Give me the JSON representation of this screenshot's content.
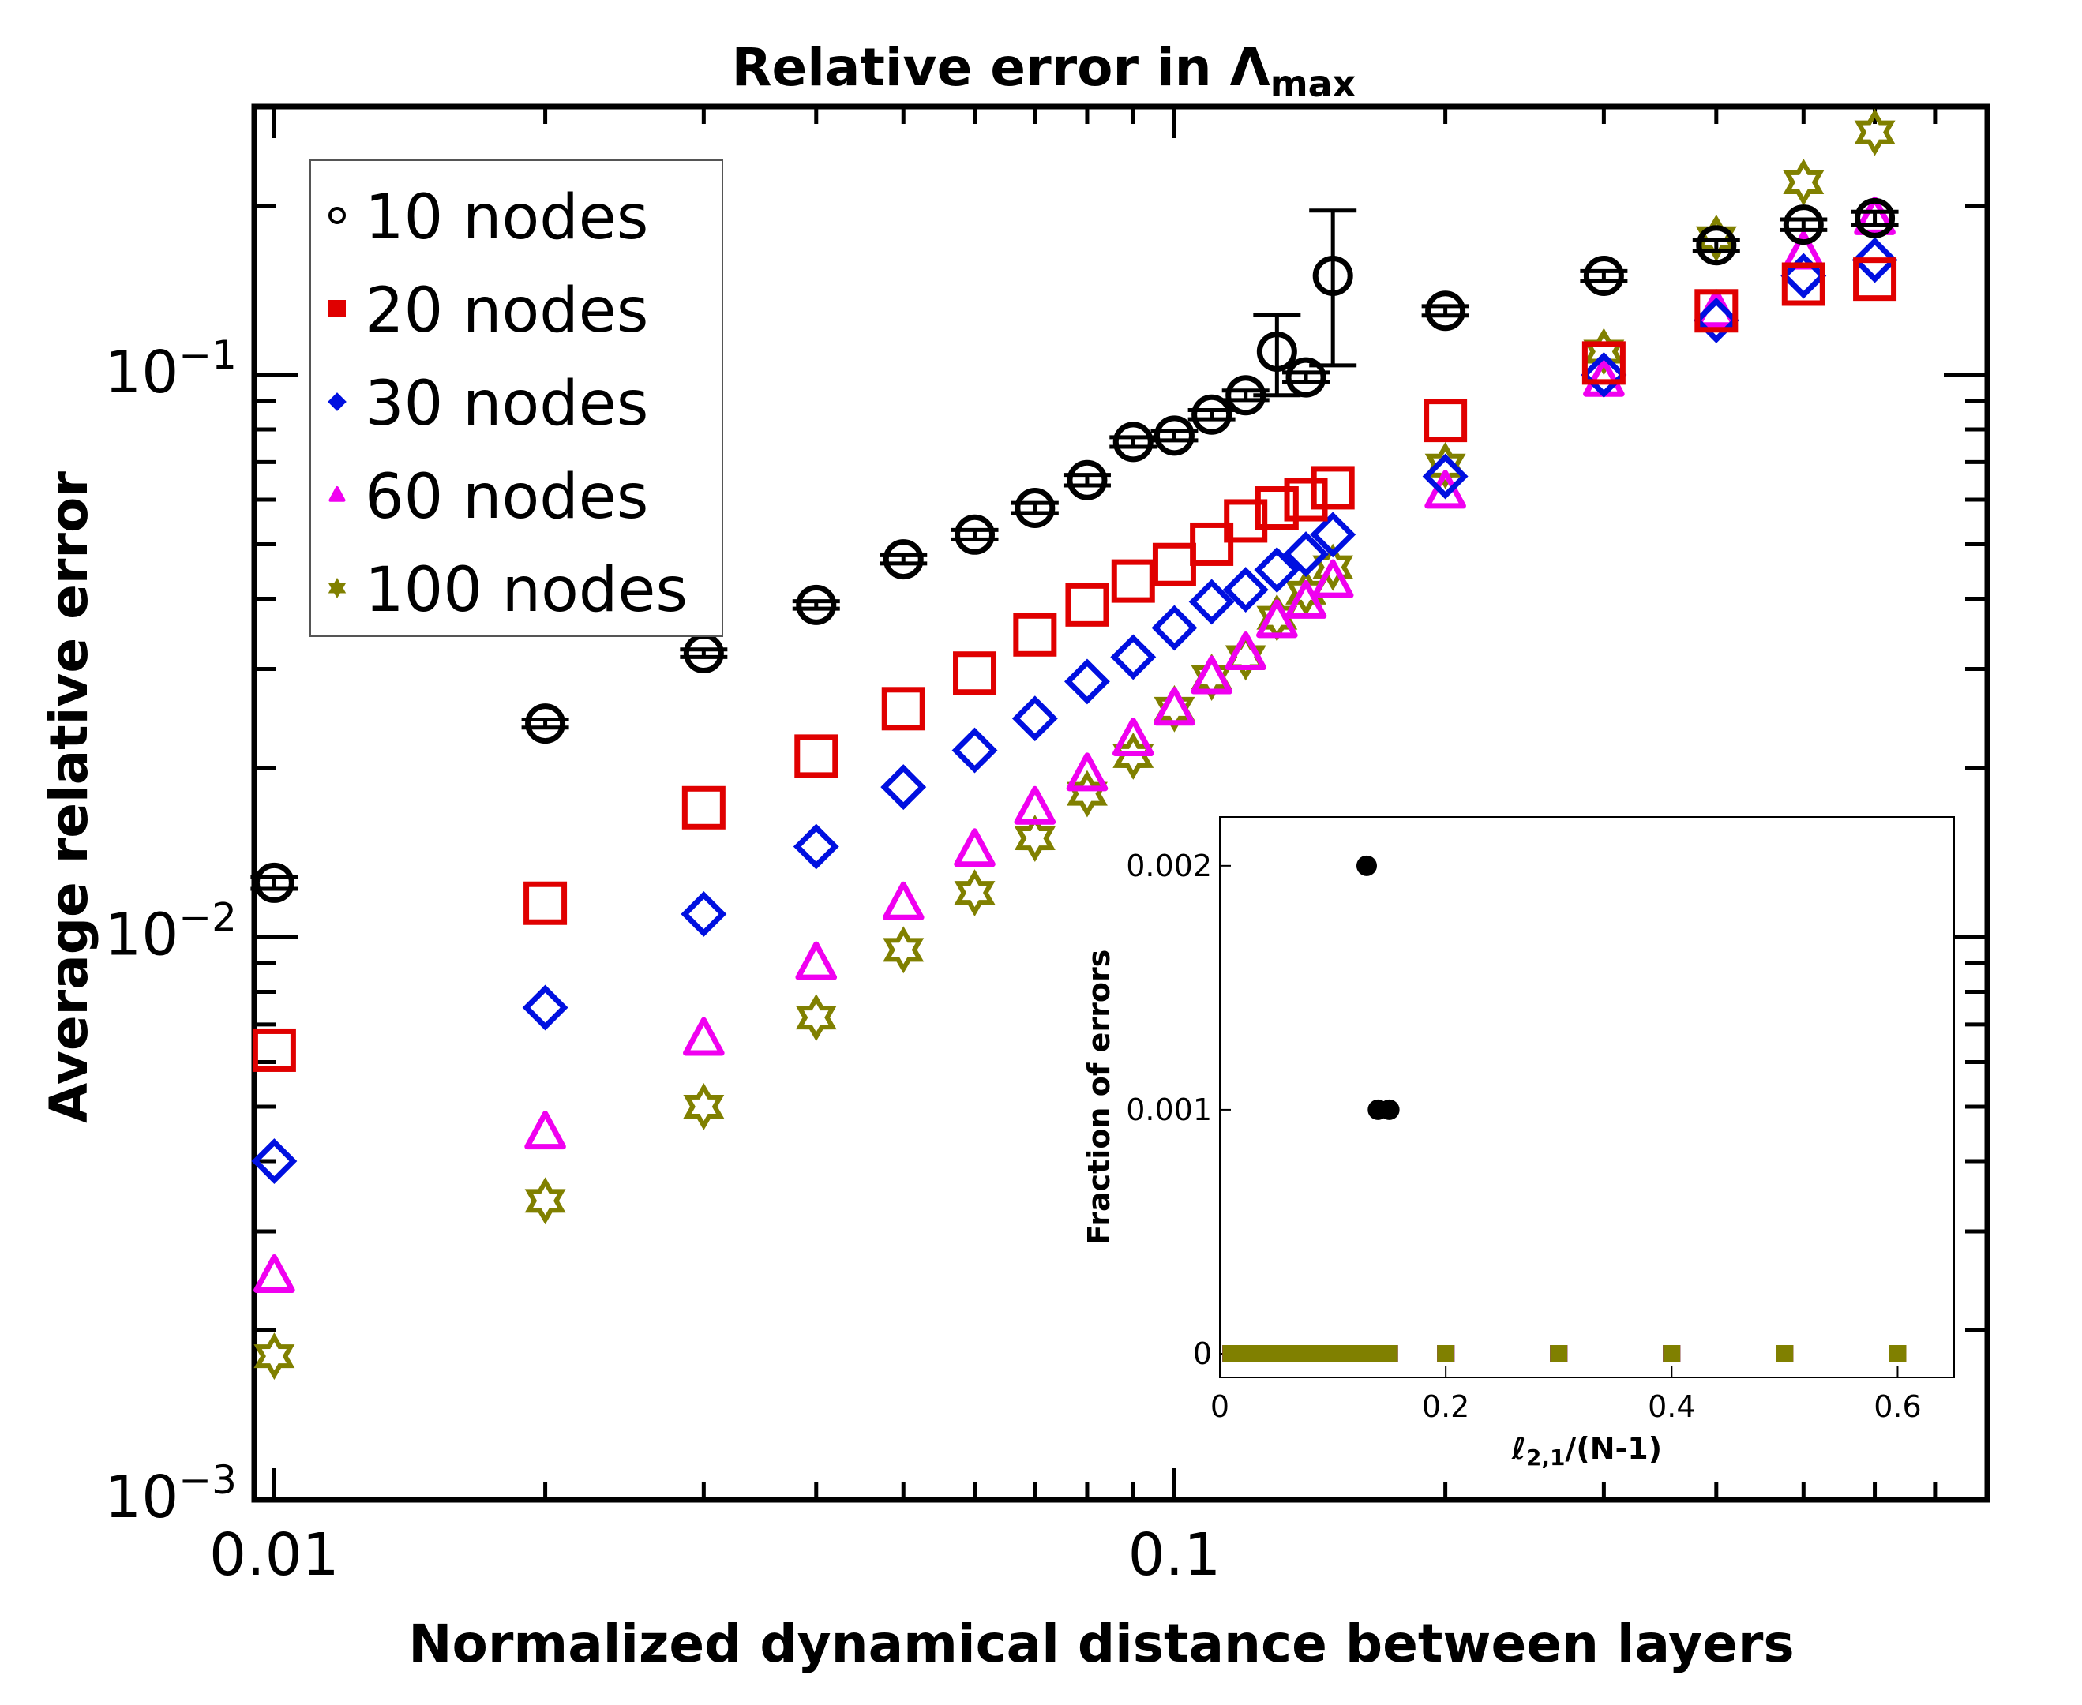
{
  "chart_data": [
    {
      "type": "scatter",
      "title": "Relative error in Λ",
      "title_subscript": "max",
      "xlabel": "Normalized dynamical distance between layers",
      "ylabel": "Average relative error",
      "xscale": "log",
      "yscale": "log",
      "xlim": [
        0.0095,
        0.8
      ],
      "ylim": [
        0.001,
        0.3
      ],
      "x_ticks": [
        {
          "value": 0.01,
          "label": "0.01"
        },
        {
          "value": 0.1,
          "label": "0.1"
        }
      ],
      "y_ticks": [
        {
          "value": 0.001,
          "label": "10",
          "exp": "−3"
        },
        {
          "value": 0.01,
          "label": "10",
          "exp": "−2"
        },
        {
          "value": 0.1,
          "label": "10",
          "exp": "−1"
        }
      ],
      "legend_position": "top-left",
      "series": [
        {
          "name": "10 nodes",
          "marker": "circle",
          "color": "#000000",
          "x": [
            0.01,
            0.02,
            0.03,
            0.04,
            0.05,
            0.06,
            0.07,
            0.08,
            0.09,
            0.1,
            0.11,
            0.12,
            0.13,
            0.14,
            0.15,
            0.2,
            0.3,
            0.4,
            0.5,
            0.6
          ],
          "y": [
            0.0125,
            0.024,
            0.032,
            0.039,
            0.047,
            0.052,
            0.058,
            0.065,
            0.076,
            0.078,
            0.085,
            0.092,
            0.11,
            0.099,
            0.15,
            0.13,
            0.15,
            0.17,
            0.185,
            0.19
          ],
          "error": [
            0.0003,
            0.0004,
            0.0005,
            0.0006,
            0.0008,
            0.001,
            0.0012,
            0.0014,
            0.0015,
            0.0015,
            0.0016,
            0.0018,
            0.018,
            0.002,
            0.046,
            0.0025,
            0.003,
            0.004,
            0.004,
            0.005
          ]
        },
        {
          "name": "20 nodes",
          "marker": "square",
          "color": "#e00000",
          "x": [
            0.01,
            0.02,
            0.03,
            0.04,
            0.05,
            0.06,
            0.07,
            0.08,
            0.09,
            0.1,
            0.11,
            0.12,
            0.13,
            0.14,
            0.15,
            0.2,
            0.3,
            0.4,
            0.5,
            0.6
          ],
          "y": [
            0.0063,
            0.0115,
            0.017,
            0.021,
            0.0255,
            0.0295,
            0.0345,
            0.039,
            0.043,
            0.046,
            0.05,
            0.055,
            0.058,
            0.06,
            0.063,
            0.083,
            0.105,
            0.13,
            0.145,
            0.148
          ]
        },
        {
          "name": "30 nodes",
          "marker": "diamond",
          "color": "#0010e0",
          "x": [
            0.01,
            0.02,
            0.03,
            0.04,
            0.05,
            0.06,
            0.07,
            0.08,
            0.09,
            0.1,
            0.11,
            0.12,
            0.13,
            0.14,
            0.15,
            0.2,
            0.3,
            0.4,
            0.5,
            0.6
          ],
          "y": [
            0.004,
            0.0075,
            0.011,
            0.0145,
            0.0185,
            0.0215,
            0.0245,
            0.0285,
            0.0315,
            0.0355,
            0.0395,
            0.0415,
            0.045,
            0.048,
            0.052,
            0.066,
            0.1,
            0.125,
            0.15,
            0.16
          ]
        },
        {
          "name": "60 nodes",
          "marker": "triangle",
          "color": "#f000f0",
          "x": [
            0.01,
            0.02,
            0.03,
            0.04,
            0.05,
            0.06,
            0.07,
            0.08,
            0.09,
            0.1,
            0.11,
            0.12,
            0.13,
            0.14,
            0.15,
            0.2,
            0.3,
            0.4,
            0.5,
            0.6
          ],
          "y": [
            0.0025,
            0.0045,
            0.0066,
            0.009,
            0.0115,
            0.0143,
            0.017,
            0.0195,
            0.0225,
            0.0255,
            0.029,
            0.032,
            0.0365,
            0.0395,
            0.043,
            0.062,
            0.098,
            0.13,
            0.165,
            0.19
          ]
        },
        {
          "name": "100 nodes",
          "marker": "star",
          "color": "#808000",
          "x": [
            0.01,
            0.02,
            0.03,
            0.04,
            0.05,
            0.06,
            0.07,
            0.08,
            0.09,
            0.1,
            0.11,
            0.12,
            0.13,
            0.14,
            0.15,
            0.2,
            0.3,
            0.4,
            0.5,
            0.6
          ],
          "y": [
            0.0018,
            0.0034,
            0.005,
            0.0072,
            0.0095,
            0.012,
            0.015,
            0.018,
            0.021,
            0.0255,
            0.029,
            0.0315,
            0.037,
            0.041,
            0.0455,
            0.069,
            0.11,
            0.175,
            0.22,
            0.27
          ]
        }
      ]
    },
    {
      "type": "scatter",
      "title": "",
      "xlabel": "ℓ",
      "xlabel_subscript": "2,1",
      "xlabel_suffix": "/(N-1)",
      "ylabel": "Fraction of errors",
      "xlim": [
        0,
        0.65
      ],
      "ylim": [
        0,
        0.0022
      ],
      "x_ticks": [
        {
          "value": 0,
          "label": "0"
        },
        {
          "value": 0.2,
          "label": "0.2"
        },
        {
          "value": 0.4,
          "label": "0.4"
        },
        {
          "value": 0.6,
          "label": "0.6"
        }
      ],
      "y_ticks": [
        {
          "value": 0,
          "label": "0"
        },
        {
          "value": 0.001,
          "label": "0.001"
        },
        {
          "value": 0.002,
          "label": "0.002"
        }
      ],
      "series": [
        {
          "name": "10 nodes",
          "color": "#000000",
          "x": [
            0.01,
            0.02,
            0.03,
            0.04,
            0.05,
            0.06,
            0.07,
            0.08,
            0.09,
            0.1,
            0.11,
            0.12,
            0.13,
            0.14,
            0.15,
            0.2,
            0.3,
            0.4,
            0.5,
            0.6
          ],
          "y": [
            0,
            0,
            0,
            0,
            0,
            0,
            0,
            0,
            0,
            0,
            0,
            0,
            0.002,
            0.001,
            0.001,
            0,
            0,
            0,
            0,
            0
          ]
        },
        {
          "name": "20 nodes",
          "color": "#e00000",
          "x": [
            0.01,
            0.02,
            0.03,
            0.04,
            0.05,
            0.06,
            0.07,
            0.08,
            0.09,
            0.1,
            0.11,
            0.12,
            0.13,
            0.14,
            0.15,
            0.2,
            0.3,
            0.4,
            0.5,
            0.6
          ],
          "y": [
            0,
            0,
            0,
            0,
            0,
            0,
            0,
            0,
            0,
            0,
            0,
            0,
            0,
            0,
            0,
            0,
            0,
            0,
            0,
            0
          ]
        },
        {
          "name": "30 nodes",
          "color": "#0010e0",
          "x": [
            0.01,
            0.02,
            0.03,
            0.04,
            0.05,
            0.06,
            0.07,
            0.08,
            0.09,
            0.1,
            0.11,
            0.12,
            0.13,
            0.14,
            0.15,
            0.2,
            0.3,
            0.4,
            0.5,
            0.6
          ],
          "y": [
            0,
            0,
            0,
            0,
            0,
            0,
            0,
            0,
            0,
            0,
            0,
            0,
            0,
            0,
            0,
            0,
            0,
            0,
            0,
            0
          ]
        },
        {
          "name": "60 nodes",
          "color": "#f000f0",
          "x": [
            0.01,
            0.02,
            0.03,
            0.04,
            0.05,
            0.06,
            0.07,
            0.08,
            0.09,
            0.1,
            0.11,
            0.12,
            0.13,
            0.14,
            0.15,
            0.2,
            0.3,
            0.4,
            0.5,
            0.6
          ],
          "y": [
            0,
            0,
            0,
            0,
            0,
            0,
            0,
            0,
            0,
            0,
            0,
            0,
            0,
            0,
            0,
            0,
            0,
            0,
            0,
            0
          ]
        },
        {
          "name": "100 nodes",
          "color": "#808000",
          "x": [
            0.01,
            0.02,
            0.03,
            0.04,
            0.05,
            0.06,
            0.07,
            0.08,
            0.09,
            0.1,
            0.11,
            0.12,
            0.13,
            0.14,
            0.15,
            0.2,
            0.3,
            0.4,
            0.5,
            0.6
          ],
          "y": [
            0,
            0,
            0,
            0,
            0,
            0,
            0,
            0,
            0,
            0,
            0,
            0,
            0,
            0,
            0,
            0,
            0,
            0,
            0,
            0
          ]
        }
      ]
    }
  ]
}
